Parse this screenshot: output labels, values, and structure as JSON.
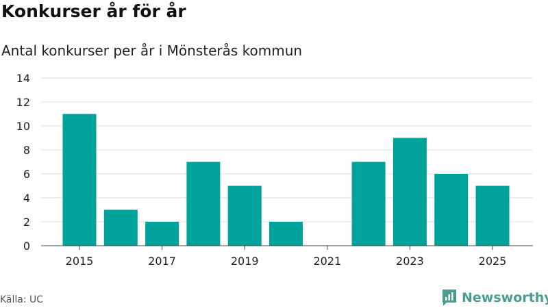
{
  "header": {
    "title": "Konkurser år för år",
    "subtitle": "Antal konkurser per år i Mönsterås kommun"
  },
  "chart_data": {
    "type": "bar",
    "title": "Konkurser år för år",
    "subtitle": "Antal konkurser per år i Mönsterås kommun",
    "xlabel": "",
    "ylabel": "",
    "categories": [
      "2015",
      "2016",
      "2017",
      "2018",
      "2019",
      "2020",
      "2021",
      "2022",
      "2023",
      "2024",
      "2025"
    ],
    "values": [
      11,
      3,
      2,
      7,
      5,
      2,
      0,
      7,
      9,
      6,
      5
    ],
    "x_tick_labels": [
      "2015",
      "2017",
      "2019",
      "2021",
      "2023",
      "2025"
    ],
    "y_ticks": [
      0,
      2,
      4,
      6,
      8,
      10,
      12,
      14
    ],
    "ylim": [
      0,
      14
    ],
    "grid": true,
    "legend": "none",
    "bar_color": "#00a39b"
  },
  "footer": {
    "source": "Källa: UC",
    "brand": "Newsworthy",
    "brand_color": "#4a9d8f"
  }
}
